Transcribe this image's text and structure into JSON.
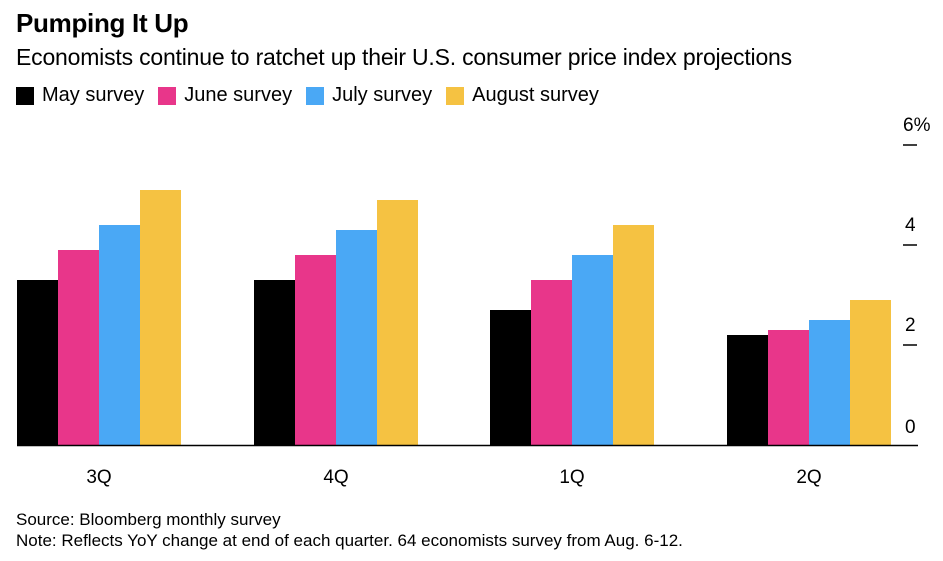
{
  "title": "Pumping It Up",
  "subtitle": "Economists continue to ratchet up their U.S. consumer price index projections",
  "source": "Source: Bloomberg monthly survey",
  "note": "Note: Reflects YoY change at end of each quarter. 64 economists survey from Aug. 6-12.",
  "colors": {
    "may": "#000000",
    "june": "#e8368a",
    "july": "#4aa8f5",
    "august": "#f5c242",
    "axis": "#000000"
  },
  "chart_data": {
    "type": "bar",
    "categories": [
      "3Q",
      "4Q",
      "1Q",
      "2Q"
    ],
    "series": [
      {
        "name": "May survey",
        "values": [
          3.3,
          3.3,
          2.7,
          2.2
        ]
      },
      {
        "name": "June survey",
        "values": [
          3.9,
          3.8,
          3.3,
          2.3
        ]
      },
      {
        "name": "July survey",
        "values": [
          4.4,
          4.3,
          3.8,
          2.5
        ]
      },
      {
        "name": "August survey",
        "values": [
          5.1,
          4.9,
          4.4,
          2.9
        ]
      }
    ],
    "ytick_labels": [
      "0",
      "2",
      "4",
      "6%"
    ],
    "yticks": [
      0,
      2,
      4,
      6
    ],
    "ylim": [
      0,
      6
    ],
    "y_axis_position": "right",
    "legend_position": "top-left",
    "grid": false
  }
}
